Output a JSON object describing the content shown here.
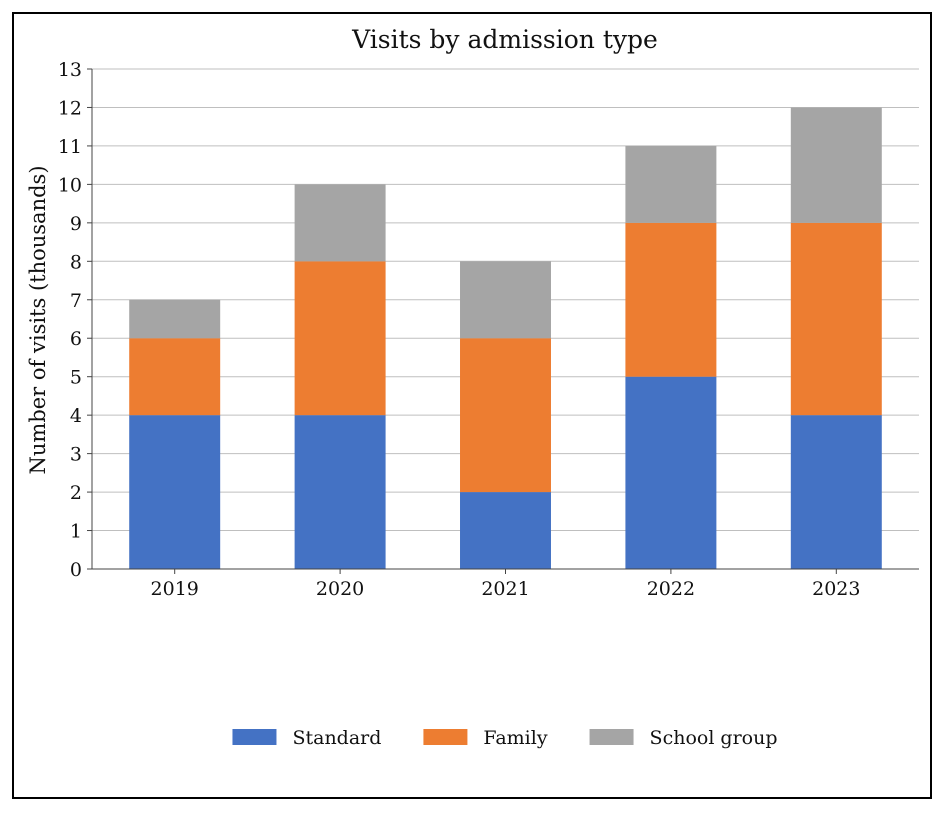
{
  "chart_data": {
    "type": "bar",
    "stacked": true,
    "title": "Visits by admission type",
    "xlabel": "",
    "ylabel": "Number of visits (thousands)",
    "categories": [
      "2019",
      "2020",
      "2021",
      "2022",
      "2023"
    ],
    "series": [
      {
        "name": "Standard",
        "color": "#4472c4",
        "values": [
          4,
          4,
          2,
          5,
          4
        ]
      },
      {
        "name": "Family",
        "color": "#ed7d31",
        "values": [
          2,
          4,
          4,
          4,
          5
        ]
      },
      {
        "name": "School group",
        "color": "#a5a5a5",
        "values": [
          1,
          2,
          2,
          2,
          3
        ]
      }
    ],
    "ylim": [
      0,
      13
    ],
    "yticks": [
      0,
      1,
      2,
      3,
      4,
      5,
      6,
      7,
      8,
      9,
      10,
      11,
      12,
      13
    ],
    "grid": true,
    "legend_position": "bottom"
  }
}
